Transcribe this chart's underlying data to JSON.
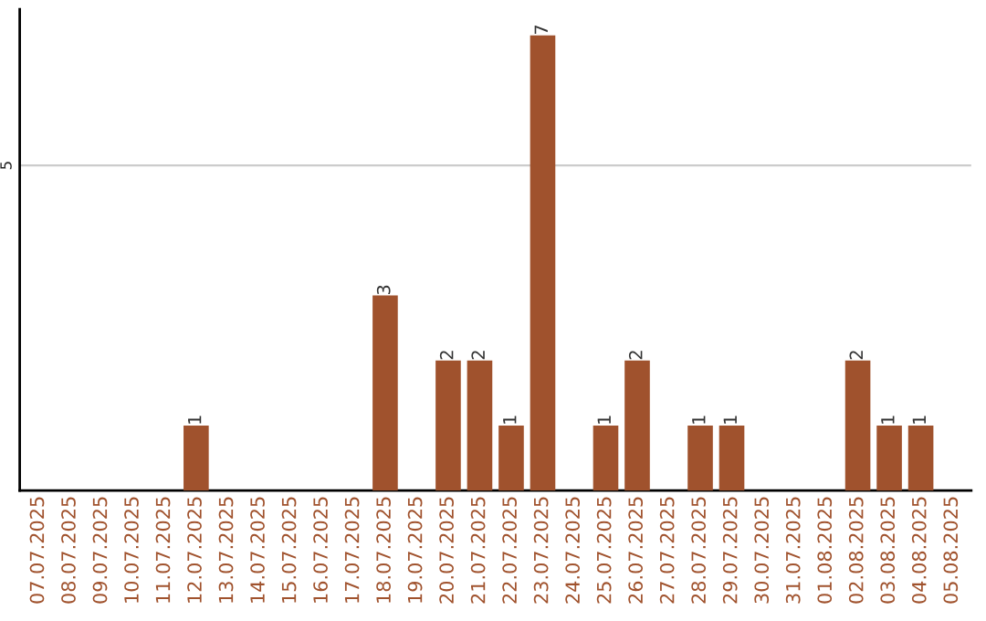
{
  "chart_data": {
    "type": "bar",
    "categories": [
      "07.07.2025",
      "08.07.2025",
      "09.07.2025",
      "10.07.2025",
      "11.07.2025",
      "12.07.2025",
      "13.07.2025",
      "14.07.2025",
      "15.07.2025",
      "16.07.2025",
      "17.07.2025",
      "18.07.2025",
      "19.07.2025",
      "20.07.2025",
      "21.07.2025",
      "22.07.2025",
      "23.07.2025",
      "24.07.2025",
      "25.07.2025",
      "26.07.2025",
      "27.07.2025",
      "28.07.2025",
      "29.07.2025",
      "30.07.2025",
      "31.07.2025",
      "01.08.2025",
      "02.08.2025",
      "03.08.2025",
      "04.08.2025",
      "05.08.2025"
    ],
    "values": [
      0,
      0,
      0,
      0,
      0,
      1,
      0,
      0,
      0,
      0,
      0,
      3,
      0,
      2,
      2,
      1,
      7,
      0,
      1,
      2,
      0,
      1,
      1,
      0,
      0,
      0,
      2,
      1,
      1,
      0
    ],
    "value_labels": [
      null,
      null,
      null,
      null,
      null,
      "1",
      null,
      null,
      null,
      null,
      null,
      "3",
      null,
      "2",
      "2",
      "1",
      "7",
      null,
      "1",
      "2",
      null,
      "1",
      "1",
      null,
      null,
      null,
      "2",
      "1",
      "1",
      null
    ],
    "color": "#a0522d",
    "ylim": [
      0,
      7.4
    ],
    "yticks": [
      5
    ],
    "grid": "y"
  }
}
